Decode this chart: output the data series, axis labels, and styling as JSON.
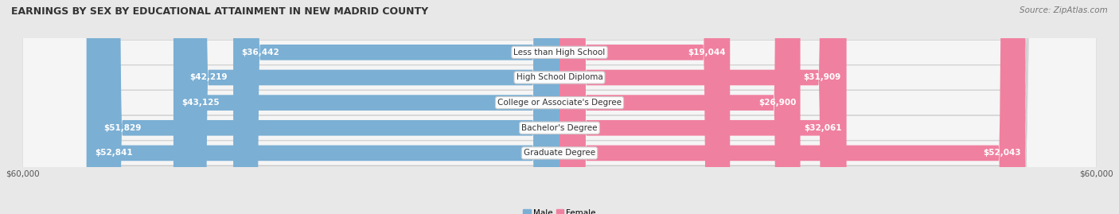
{
  "title": "EARNINGS BY SEX BY EDUCATIONAL ATTAINMENT IN NEW MADRID COUNTY",
  "source": "Source: ZipAtlas.com",
  "categories": [
    "Less than High School",
    "High School Diploma",
    "College or Associate's Degree",
    "Bachelor's Degree",
    "Graduate Degree"
  ],
  "male_values": [
    36442,
    42219,
    43125,
    51829,
    52841
  ],
  "female_values": [
    19044,
    31909,
    26900,
    32061,
    52043
  ],
  "male_color": "#7bafd4",
  "female_color": "#f080a0",
  "male_label": "Male",
  "female_label": "Female",
  "axis_max": 60000,
  "bar_height": 0.62,
  "background_color": "#e8e8e8",
  "row_bg": "#f2f2f2",
  "row_border": "#d0d0d0",
  "x_tick_label": "$60,000",
  "title_fontsize": 9.0,
  "source_fontsize": 7.5,
  "bar_label_fontsize": 7.5,
  "cat_label_fontsize": 7.5,
  "axis_label_fontsize": 7.5
}
